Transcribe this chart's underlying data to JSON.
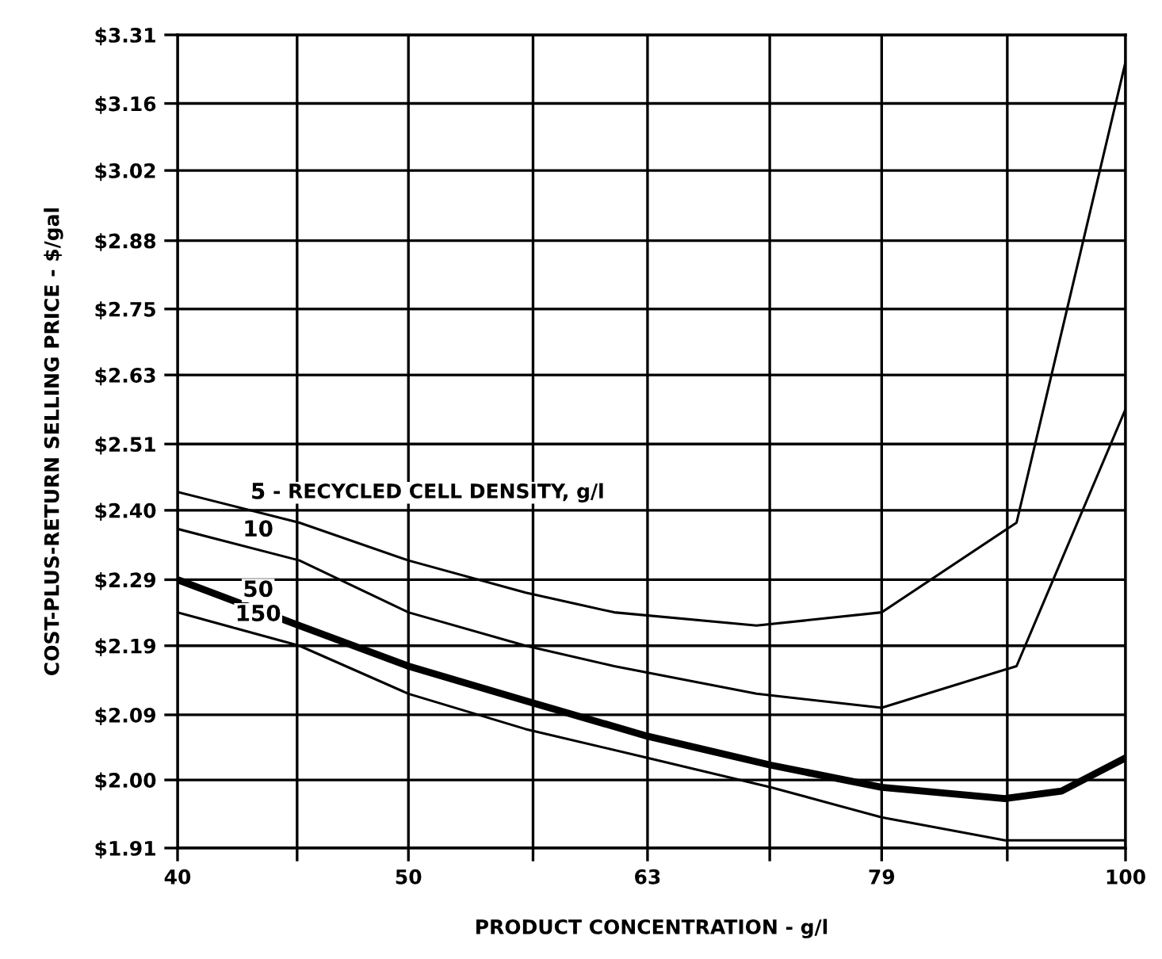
{
  "chart_data": {
    "type": "line",
    "xlabel": "PRODUCT CONCENTRATION - g/l",
    "ylabel": "COST-PLUS-RETURN SELLING PRICE - $/gal",
    "log": "xy",
    "grid": true,
    "marker": "none",
    "line_style": "solid",
    "legend": false,
    "xlim": [
      40,
      100
    ],
    "ylim": [
      1.91,
      3.31
    ],
    "xticks": [
      40,
      {
        "value": 44.9,
        "label": null
      },
      50,
      {
        "value": 56.4,
        "label": null
      },
      63,
      {
        "value": 70.9,
        "label": null
      },
      79,
      {
        "value": 89.2,
        "label": null
      },
      100
    ],
    "yticks": [
      {
        "value": 1.91,
        "label": "$1.91"
      },
      {
        "value": 2.0,
        "label": "$2.00"
      },
      {
        "value": 2.09,
        "label": "$2.09"
      },
      {
        "value": 2.19,
        "label": "$2.19"
      },
      {
        "value": 2.29,
        "label": "$2.29"
      },
      {
        "value": 2.4,
        "label": "$2.40"
      },
      {
        "value": 2.51,
        "label": "$2.51"
      },
      {
        "value": 2.63,
        "label": "$2.63"
      },
      {
        "value": 2.75,
        "label": "$2.75"
      },
      {
        "value": 2.88,
        "label": "$2.88"
      },
      {
        "value": 3.02,
        "label": "$3.02"
      },
      {
        "value": 3.16,
        "label": "$3.16"
      },
      {
        "value": 3.31,
        "label": "$3.31"
      }
    ],
    "annotations": [
      "- RECYCLED CELL DENSITY, g/l"
    ],
    "series": [
      {
        "name": "5",
        "color": "#000000",
        "x": [
          40,
          45,
          50,
          56,
          61,
          70,
          79,
          90,
          100
        ],
        "values": [
          2.43,
          2.38,
          2.32,
          2.27,
          2.24,
          2.22,
          2.24,
          2.38,
          3.25
        ]
      },
      {
        "name": "10",
        "color": "#000000",
        "x": [
          40,
          45,
          50,
          56,
          61,
          70,
          79,
          90,
          100
        ],
        "values": [
          2.37,
          2.32,
          2.24,
          2.19,
          2.16,
          2.12,
          2.1,
          2.16,
          2.57
        ]
      },
      {
        "name": "50",
        "color": "#000000",
        "x": [
          40,
          45,
          50,
          56,
          63,
          71,
          79,
          89,
          94,
          100
        ],
        "values": [
          2.29,
          2.22,
          2.16,
          2.11,
          2.06,
          2.02,
          1.99,
          1.975,
          1.985,
          2.03
        ]
      },
      {
        "name": "150",
        "color": "#000000",
        "x": [
          40,
          45,
          50,
          56,
          63,
          71,
          79,
          89,
          100
        ],
        "values": [
          2.24,
          2.19,
          2.12,
          2.07,
          2.03,
          1.99,
          1.95,
          1.92,
          1.92
        ]
      }
    ]
  }
}
